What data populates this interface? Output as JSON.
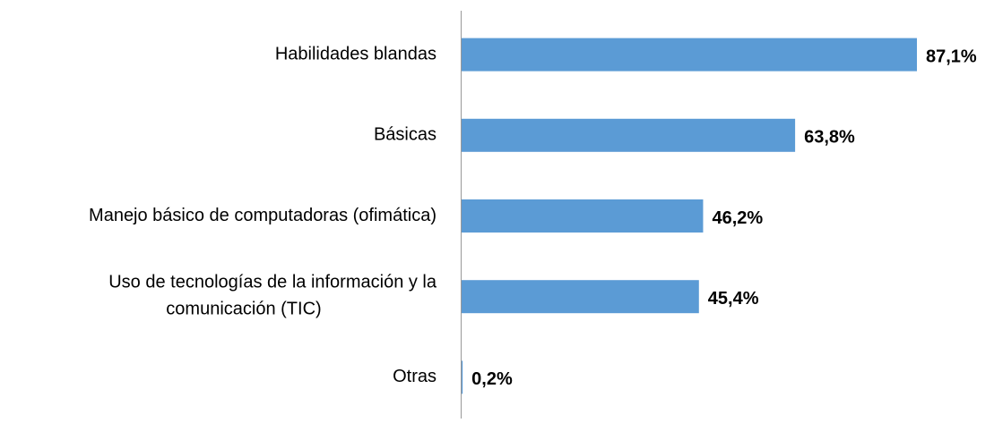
{
  "chart_data": {
    "type": "bar",
    "orientation": "horizontal",
    "categories": [
      "Habilidades blandas",
      "Básicas",
      "Manejo básico de computadoras (ofimática)",
      "Uso de tecnologías de la información y la\ncomunicación (TIC)",
      "Otras"
    ],
    "values": [
      87.1,
      63.8,
      46.2,
      45.4,
      0.2
    ],
    "value_labels": [
      "87,1%",
      "63,8%",
      "46,2%",
      "45,4%",
      "0,2%"
    ],
    "color": "#5b9bd5"
  }
}
